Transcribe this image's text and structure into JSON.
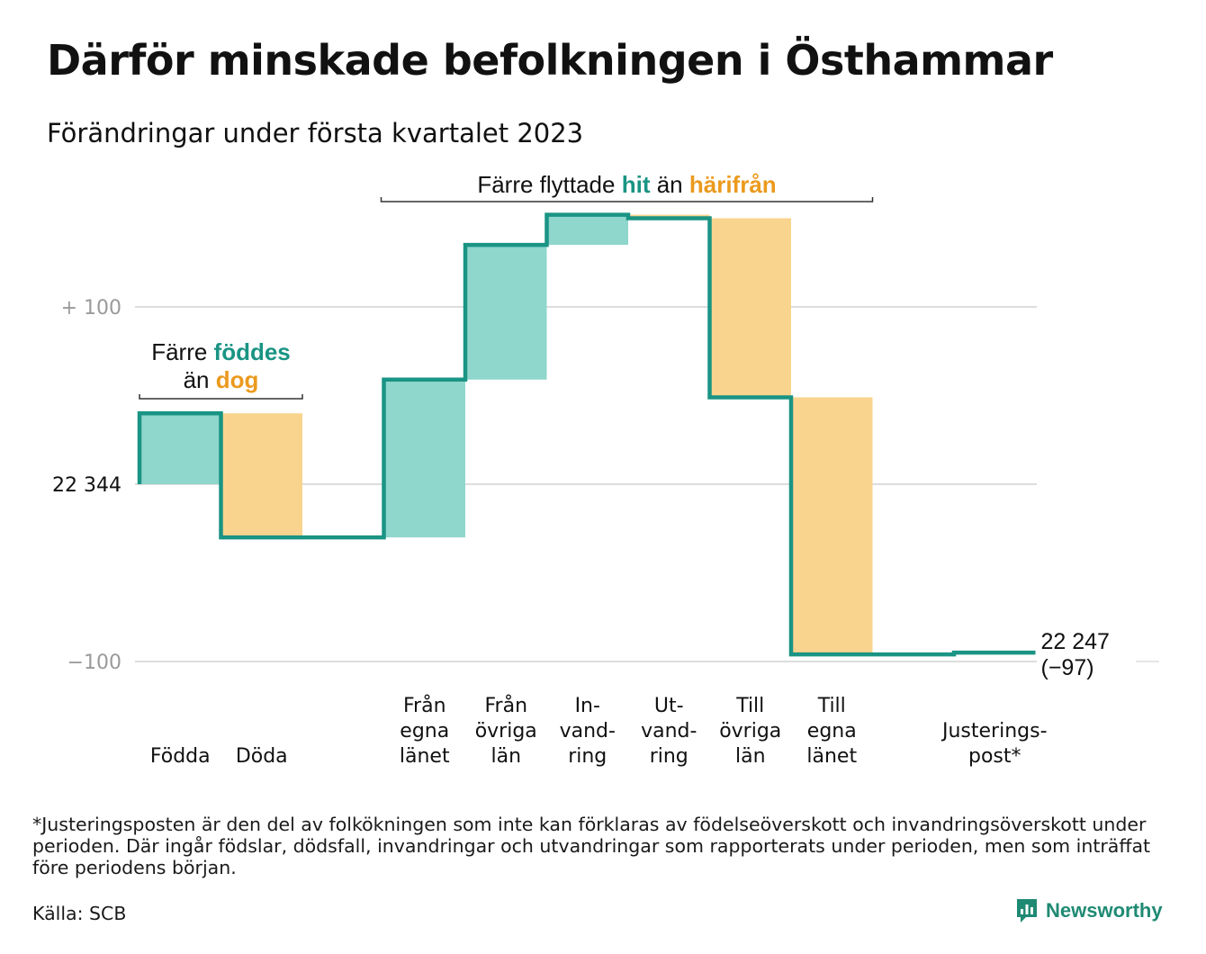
{
  "title": "Därför minskade befolkningen i Östhammar",
  "subtitle": "Förändringar under första kvartalet 2023",
  "chart_data": {
    "type": "waterfall",
    "start_value": 22344,
    "start_label": "22 344",
    "ytick_labels": [
      {
        "value": 100,
        "label": "+ 100"
      },
      {
        "value": 0,
        "label": "22 344"
      },
      {
        "value": -100,
        "label": "−100"
      }
    ],
    "ylim": [
      -100,
      152
    ],
    "steps": [
      {
        "label_lines": [
          "Födda"
        ],
        "value": 40,
        "kind": "in"
      },
      {
        "label_lines": [
          "Döda"
        ],
        "value": -70,
        "kind": "out"
      },
      {
        "label_lines": [],
        "value": 0,
        "kind": "gap"
      },
      {
        "label_lines": [
          "Från",
          "egna",
          "länet"
        ],
        "value": 89,
        "kind": "in"
      },
      {
        "label_lines": [
          "Från",
          "övriga",
          "län"
        ],
        "value": 76,
        "kind": "in"
      },
      {
        "label_lines": [
          "In-",
          "vand-",
          "ring"
        ],
        "value": 17,
        "kind": "in"
      },
      {
        "label_lines": [
          "Ut-",
          "vand-",
          "ring"
        ],
        "value": -2,
        "kind": "out"
      },
      {
        "label_lines": [
          "Till",
          "övriga",
          "län"
        ],
        "value": -101,
        "kind": "out"
      },
      {
        "label_lines": [
          "Till",
          "egna",
          "länet"
        ],
        "value": -145,
        "kind": "out"
      },
      {
        "label_lines": [],
        "value": 0,
        "kind": "gap"
      },
      {
        "label_lines": [
          "Justerings-",
          "post*"
        ],
        "value": 1,
        "kind": "adjust"
      }
    ],
    "end_label": "22 247",
    "end_change": "(−97)",
    "annotations": [
      {
        "group": "births",
        "parts": [
          {
            "text": "Färre ",
            "style": "plain"
          },
          {
            "text": "föddes",
            "style": "in"
          },
          {
            "text": "än ",
            "style": "plain",
            "newline": true
          },
          {
            "text": "dog",
            "style": "out"
          }
        ]
      },
      {
        "group": "moves",
        "parts": [
          {
            "text": "Färre flyttade ",
            "style": "plain"
          },
          {
            "text": "hit",
            "style": "in"
          },
          {
            "text": " än ",
            "style": "plain"
          },
          {
            "text": "härifrån",
            "style": "out"
          }
        ]
      }
    ],
    "colors": {
      "line": "#1a9484",
      "in_fill": "#8fd6cd",
      "out_fill": "#f9d48e",
      "in_text": "#1a9484",
      "out_text": "#eb9a1e",
      "grid": "#dddddd",
      "tick_text": "#9a9a9a"
    }
  },
  "footnote": "*Justeringsposten är den del av folkökningen som inte kan förklaras av födelseöverskott och invandringsöverskott under perioden. Där ingår födslar, dödsfall, invandringar och utvandringar som rapporterats under perioden, men som inträffat före periodens början.",
  "source": "Källa: SCB",
  "brand": {
    "name": "Newsworthy",
    "color": "#1f8a73"
  }
}
